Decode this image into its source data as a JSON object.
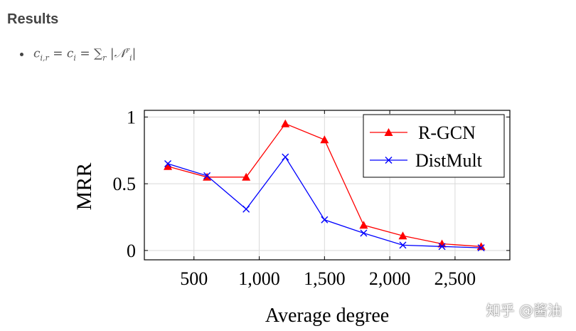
{
  "heading": "Results",
  "formula": {
    "lhs": "c",
    "lhs_sub": "i,r",
    "eq": "=",
    "mid": "c",
    "mid_sub": "i",
    "sum": "∑",
    "sum_sub": "r",
    "bar_open": "|",
    "set": "𝒩",
    "set_sup": "r",
    "set_sub": "i",
    "bar_close": "|"
  },
  "watermark": "知乎 @酱油",
  "chart_data": {
    "type": "line",
    "title": "",
    "xlabel": "Average degree",
    "ylabel": "MRR",
    "xlim": [
      120,
      2920
    ],
    "ylim": [
      -0.07,
      1.05
    ],
    "xticks": [
      500,
      1000,
      1500,
      2000,
      2500
    ],
    "xtick_labels": [
      "500",
      "1,000",
      "1,500",
      "2,000",
      "2,500"
    ],
    "yticks": [
      0,
      0.5,
      1
    ],
    "ytick_labels": [
      "0",
      "0.5",
      "1"
    ],
    "legend_position": "top-right",
    "series": [
      {
        "name": "R-GCN",
        "color": "#ff0000",
        "marker": "triangle",
        "x": [
          300,
          600,
          900,
          1200,
          1500,
          1800,
          2100,
          2400,
          2700
        ],
        "y": [
          0.63,
          0.55,
          0.55,
          0.95,
          0.83,
          0.19,
          0.11,
          0.05,
          0.03
        ]
      },
      {
        "name": "DistMult",
        "color": "#0000ff",
        "marker": "x",
        "x": [
          300,
          600,
          900,
          1200,
          1500,
          1800,
          2100,
          2400,
          2700
        ],
        "y": [
          0.65,
          0.56,
          0.31,
          0.7,
          0.23,
          0.13,
          0.04,
          0.03,
          0.02
        ]
      }
    ]
  }
}
